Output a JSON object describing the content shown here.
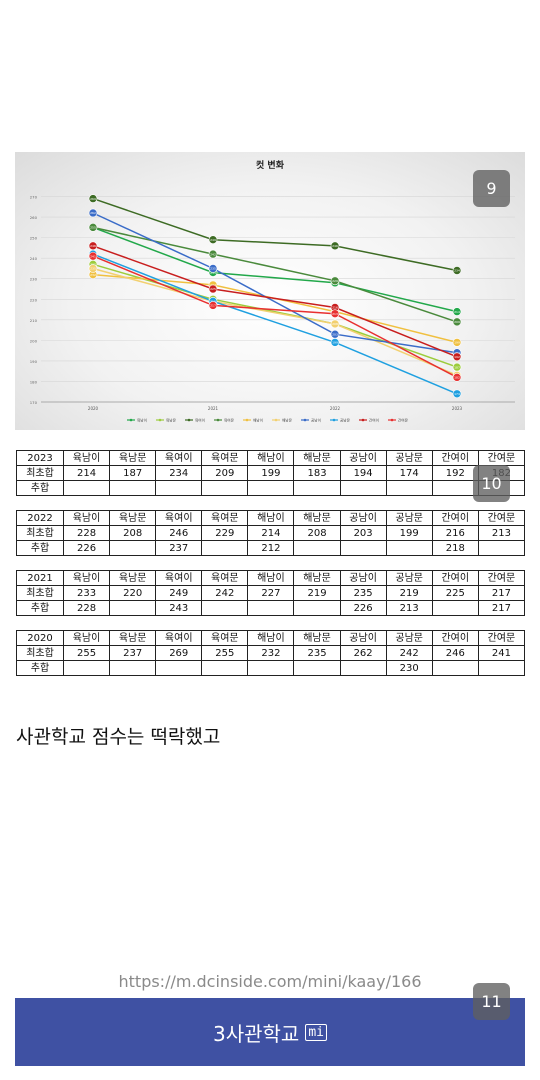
{
  "page_badges": {
    "chart": "9",
    "table": "10",
    "footer": "11"
  },
  "chart_data": {
    "type": "line",
    "title": "컷 변화",
    "x": [
      "2020",
      "2021",
      "2022",
      "2023"
    ],
    "ylim": [
      170,
      280
    ],
    "yticks": [
      170,
      180,
      190,
      200,
      210,
      220,
      230,
      240,
      250,
      260,
      270
    ],
    "grid": true,
    "legend": "bottom",
    "series": [
      {
        "name": "육남이",
        "color": "#22a84a",
        "values": [
          255,
          233,
          228,
          214
        ]
      },
      {
        "name": "육남문",
        "color": "#9ccc3c",
        "values": [
          237,
          220,
          208,
          187
        ]
      },
      {
        "name": "육여이",
        "color": "#3d6b24",
        "values": [
          269,
          249,
          246,
          234
        ]
      },
      {
        "name": "육여문",
        "color": "#4a8a3c",
        "values": [
          255,
          242,
          229,
          209
        ]
      },
      {
        "name": "해남이",
        "color": "#f0c040",
        "values": [
          232,
          227,
          214,
          199
        ]
      },
      {
        "name": "해남문",
        "color": "#f2d070",
        "values": [
          235,
          219,
          208,
          183
        ]
      },
      {
        "name": "공남이",
        "color": "#3a6cc8",
        "values": [
          262,
          235,
          203,
          194
        ]
      },
      {
        "name": "공남문",
        "color": "#1fa0e0",
        "values": [
          242,
          219,
          199,
          174
        ]
      },
      {
        "name": "간여이",
        "color": "#c81e1e",
        "values": [
          246,
          225,
          216,
          192
        ]
      },
      {
        "name": "간여문",
        "color": "#e83030",
        "values": [
          241,
          217,
          213,
          182
        ]
      }
    ]
  },
  "tables": [
    {
      "year": "2023",
      "columns": [
        "육남이",
        "육남문",
        "육여이",
        "육여문",
        "해남이",
        "해남문",
        "공남이",
        "공남문",
        "간여이",
        "간여문"
      ],
      "rows": [
        {
          "label": "최초합",
          "cells": [
            "214",
            "187",
            "234",
            "209",
            "199",
            "183",
            "194",
            "174",
            "192",
            "182"
          ]
        },
        {
          "label": "추합",
          "cells": [
            "",
            "",
            "",
            "",
            "",
            "",
            "",
            "",
            "",
            ""
          ]
        }
      ]
    },
    {
      "year": "2022",
      "columns": [
        "육남이",
        "육남문",
        "육여이",
        "육여문",
        "해남이",
        "해남문",
        "공남이",
        "공남문",
        "간여이",
        "간여문"
      ],
      "rows": [
        {
          "label": "최초합",
          "cells": [
            "228",
            "208",
            "246",
            "229",
            "214",
            "208",
            "203",
            "199",
            "216",
            "213"
          ]
        },
        {
          "label": "추합",
          "cells": [
            "226",
            "",
            "237",
            "",
            "212",
            "",
            "",
            "",
            "218",
            ""
          ]
        }
      ]
    },
    {
      "year": "2021",
      "columns": [
        "육남이",
        "육남문",
        "육여이",
        "육여문",
        "해남이",
        "해남문",
        "공남이",
        "공남문",
        "간여이",
        "간여문"
      ],
      "rows": [
        {
          "label": "최초합",
          "cells": [
            "233",
            "220",
            "249",
            "242",
            "227",
            "219",
            "235",
            "219",
            "225",
            "217"
          ]
        },
        {
          "label": "추합",
          "cells": [
            "228",
            "",
            "243",
            "",
            "",
            "",
            "226",
            "213",
            "",
            "217"
          ]
        }
      ]
    },
    {
      "year": "2020",
      "columns": [
        "육남이",
        "육남문",
        "육여이",
        "육여문",
        "해남이",
        "해남문",
        "공남이",
        "공남문",
        "간여이",
        "간여문"
      ],
      "rows": [
        {
          "label": "최초합",
          "cells": [
            "255",
            "237",
            "269",
            "255",
            "232",
            "235",
            "262",
            "242",
            "246",
            "241"
          ]
        },
        {
          "label": "추합",
          "cells": [
            "",
            "",
            "",
            "",
            "",
            "",
            "",
            "230",
            "",
            ""
          ]
        }
      ]
    }
  ],
  "caption": "사관학교 점수는 떡락했고",
  "source_url": "https://m.dcinside.com/mini/kaay/166",
  "footer": {
    "title": "3사관학교",
    "badge": "mi"
  }
}
